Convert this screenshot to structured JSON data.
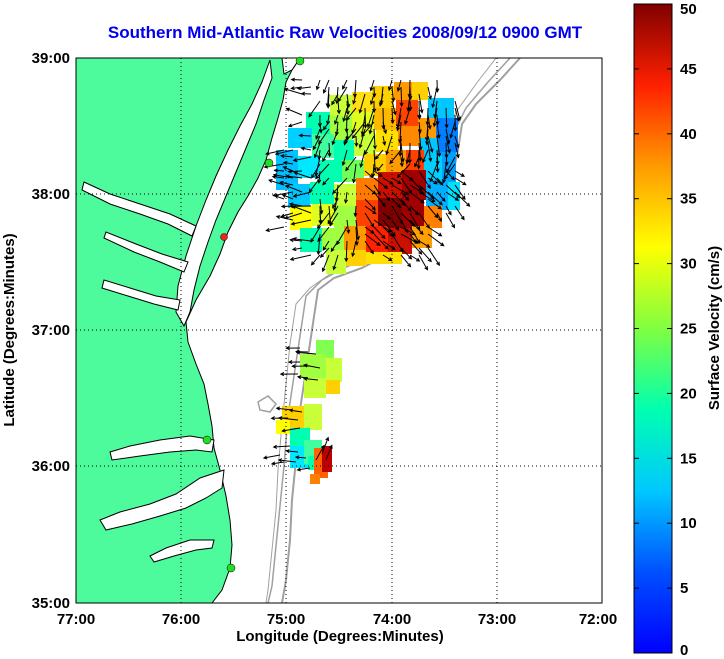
{
  "title": "Southern Mid-Atlantic Raw Velocities 2008/09/12 0900 GMT",
  "colors": {
    "title": "#0000ee",
    "land": "#4dfa9c",
    "bathymetry": "#a0a0a0",
    "vectors": "#000000",
    "station": "#22dd22",
    "station_alt": "#ee2222"
  },
  "map": {
    "xlabel": "Longitude (Degrees:Minutes)",
    "ylabel": "Latitude (Degrees:Minutes)",
    "lon_range": [
      -77,
      -72
    ],
    "lat_range": [
      35,
      39
    ],
    "x_ticks": [
      {
        "value": -77,
        "label": "77:00"
      },
      {
        "value": -76,
        "label": "76:00"
      },
      {
        "value": -75,
        "label": "75:00"
      },
      {
        "value": -74,
        "label": "74:00"
      },
      {
        "value": -73,
        "label": "73:00"
      },
      {
        "value": -72,
        "label": "72:00"
      }
    ],
    "y_ticks": [
      {
        "value": 39,
        "label": "39:00"
      },
      {
        "value": 38,
        "label": "38:00"
      },
      {
        "value": 37,
        "label": "37:00"
      },
      {
        "value": 36,
        "label": "36:00"
      },
      {
        "value": 35,
        "label": "35:00"
      }
    ],
    "grid": "dotted"
  },
  "colorbar": {
    "label": "Surface Velocity (cm/s)",
    "range": [
      0,
      50
    ],
    "ticks": [
      0,
      5,
      10,
      15,
      20,
      25,
      30,
      35,
      40,
      45,
      50
    ],
    "colormap": "jet"
  },
  "stations": [
    {
      "lon": -75.12,
      "lat": 38.97,
      "status": "ok"
    },
    {
      "lon": -75.45,
      "lat": 38.22,
      "status": "ok"
    },
    {
      "lon": -75.6,
      "lat": 37.68,
      "status": "alt"
    },
    {
      "lon": -75.74,
      "lat": 36.18,
      "status": "ok"
    },
    {
      "lon": -75.47,
      "lat": 35.22,
      "status": "ok"
    }
  ]
}
